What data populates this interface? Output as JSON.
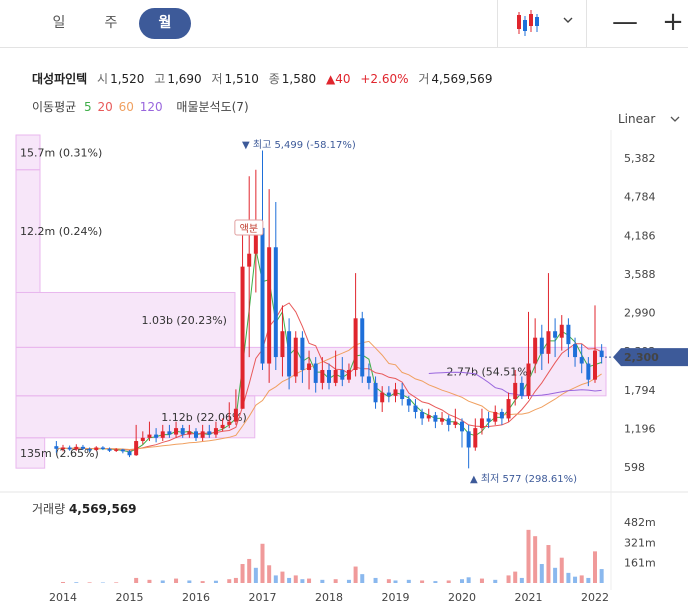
{
  "toolbar": {
    "tabs": [
      {
        "label": "일",
        "active": false
      },
      {
        "label": "주",
        "active": false
      },
      {
        "label": "월",
        "active": true
      }
    ],
    "chart_type_icon": "candlestick-icon",
    "zoom_out_label": "—",
    "zoom_in_label": "+"
  },
  "stock": {
    "name": "대성파인텍",
    "open_label": "시",
    "open": "1,520",
    "high_label": "고",
    "high": "1,690",
    "low_label": "저",
    "low": "1,510",
    "close_label": "종",
    "close": "1,580",
    "change_arrow": "▲",
    "change": "40",
    "change_pct": "+2.60%",
    "volume_label": "거",
    "volume": "4,569,569"
  },
  "indicators": {
    "ma_label": "이동평균",
    "ma_periods": [
      "5",
      "20",
      "60",
      "120"
    ],
    "vp_label": "매물분석도(7)"
  },
  "scale_button": "Linear",
  "volume_panel": {
    "label": "거래량",
    "value": "4,569,569"
  },
  "colors": {
    "up": "#e0252d",
    "down": "#1e6fd9",
    "ma5": "#3fae49",
    "ma20": "#e85a5a",
    "ma60": "#f0a060",
    "ma120": "#9966dd",
    "accent": "#3d5a99",
    "vp": "#e9b7ee"
  },
  "chart_data": {
    "type": "candlestick",
    "y_ticks": [
      "5,382",
      "4,784",
      "4,186",
      "3,588",
      "2,990",
      "2,392",
      "1,794",
      "1,196",
      "598"
    ],
    "y_tick_values": [
      5382,
      4784,
      4186,
      3588,
      2990,
      2392,
      1794,
      1196,
      598
    ],
    "ylim": [
      598,
      5382
    ],
    "x_ticks": [
      "2014",
      "2015",
      "2016",
      "2017",
      "2018",
      "2019",
      "2020",
      "2021",
      "2022"
    ],
    "current_price": {
      "value": 2300,
      "label": "2,300"
    },
    "extremes": {
      "high": {
        "label": "최고",
        "value": "5,499",
        "pct": "(-58.17%)",
        "date": "2016-12"
      },
      "low": {
        "label": "최저",
        "value": "577",
        "pct": "(298.61%)",
        "date": "2020-03"
      }
    },
    "annotation": {
      "text": "액분",
      "date": "2016-10"
    },
    "volume_profile": [
      {
        "price_low": 5200,
        "price_high": 6000,
        "volume_label": "15.7m",
        "pct": "(0.31%)",
        "pct_value": 0.31
      },
      {
        "price_low": 3300,
        "price_high": 5200,
        "volume_label": "12.2m",
        "pct": "(0.24%)",
        "pct_value": 0.24
      },
      {
        "price_low": 2450,
        "price_high": 3300,
        "volume_label": "1.03b",
        "pct": "(20.23%)",
        "pct_value": 20.23
      },
      {
        "price_low": 1700,
        "price_high": 2450,
        "volume_label": "2.77b",
        "pct": "(54.51%)",
        "pct_value": 54.51
      },
      {
        "price_low": 1050,
        "price_high": 1700,
        "volume_label": "1.12b",
        "pct": "(22.06%)",
        "pct_value": 22.06
      },
      {
        "price_low": 580,
        "price_high": 1050,
        "volume_label": "135m",
        "pct": "(2.65%)",
        "pct_value": 2.65
      }
    ],
    "volume_y_ticks": [
      "482m",
      "321m",
      "161m"
    ],
    "volume_y_values": [
      482,
      321,
      161
    ],
    "candles": [
      [
        2013.9,
        920,
        880,
        1000,
        820
      ],
      [
        2014.0,
        880,
        900,
        940,
        840
      ],
      [
        2014.1,
        900,
        870,
        930,
        850
      ],
      [
        2014.2,
        870,
        910,
        950,
        850
      ],
      [
        2014.3,
        910,
        880,
        940,
        860
      ],
      [
        2014.4,
        880,
        860,
        900,
        830
      ],
      [
        2014.5,
        860,
        900,
        920,
        850
      ],
      [
        2014.6,
        900,
        880,
        920,
        860
      ],
      [
        2014.7,
        880,
        850,
        900,
        830
      ],
      [
        2014.8,
        850,
        870,
        890,
        830
      ],
      [
        2014.9,
        870,
        840,
        880,
        810
      ],
      [
        2015.0,
        840,
        780,
        860,
        750
      ],
      [
        2015.1,
        780,
        1000,
        1250,
        770
      ],
      [
        2015.2,
        1000,
        1050,
        1150,
        950
      ],
      [
        2015.3,
        1050,
        1100,
        1300,
        1000
      ],
      [
        2015.4,
        1100,
        1050,
        1200,
        980
      ],
      [
        2015.5,
        1050,
        1150,
        1250,
        1000
      ],
      [
        2015.6,
        1150,
        1100,
        1250,
        1050
      ],
      [
        2015.7,
        1100,
        1200,
        1300,
        1050
      ],
      [
        2015.8,
        1200,
        1100,
        1250,
        1050
      ],
      [
        2015.9,
        1100,
        1150,
        1250,
        1050
      ],
      [
        2016.0,
        1150,
        1050,
        1200,
        1000
      ],
      [
        2016.1,
        1050,
        1150,
        1250,
        1000
      ],
      [
        2016.2,
        1150,
        1100,
        1250,
        1050
      ],
      [
        2016.3,
        1100,
        1200,
        1300,
        1050
      ],
      [
        2016.4,
        1200,
        1250,
        1350,
        1150
      ],
      [
        2016.5,
        1250,
        1300,
        1600,
        1200
      ],
      [
        2016.6,
        1300,
        1500,
        1800,
        1250
      ],
      [
        2016.7,
        1500,
        3700,
        4300,
        1500
      ],
      [
        2016.8,
        3700,
        3900,
        5100,
        2300
      ],
      [
        2016.9,
        3900,
        4300,
        5200,
        3300
      ],
      [
        2017.0,
        4300,
        2200,
        5499,
        2100
      ],
      [
        2017.1,
        2200,
        4000,
        4900,
        1900
      ],
      [
        2017.2,
        4000,
        2300,
        4700,
        2100
      ],
      [
        2017.3,
        2300,
        2700,
        3100,
        2000
      ],
      [
        2017.4,
        2700,
        2000,
        2900,
        1800
      ],
      [
        2017.5,
        2000,
        2600,
        2700,
        1900
      ],
      [
        2017.6,
        2600,
        2100,
        2700,
        1900
      ],
      [
        2017.7,
        2100,
        2200,
        2400,
        1800
      ],
      [
        2017.8,
        2200,
        1900,
        2300,
        1750
      ],
      [
        2017.9,
        1900,
        2100,
        2300,
        1800
      ],
      [
        2018.0,
        2100,
        1900,
        2200,
        1800
      ],
      [
        2018.1,
        1900,
        2100,
        2400,
        1850
      ],
      [
        2018.2,
        2100,
        1950,
        2300,
        1850
      ],
      [
        2018.3,
        1950,
        2100,
        2200,
        1900
      ],
      [
        2018.4,
        2100,
        2900,
        3600,
        2000
      ],
      [
        2018.5,
        2900,
        2000,
        3000,
        1900
      ],
      [
        2018.6,
        2000,
        1900,
        2200,
        1800
      ],
      [
        2018.7,
        1900,
        1600,
        2000,
        1500
      ],
      [
        2018.8,
        1600,
        1750,
        1850,
        1450
      ],
      [
        2018.9,
        1750,
        1700,
        1850,
        1600
      ],
      [
        2019.0,
        1700,
        1800,
        1900,
        1600
      ],
      [
        2019.1,
        1800,
        1650,
        1900,
        1550
      ],
      [
        2019.2,
        1650,
        1550,
        1700,
        1450
      ],
      [
        2019.3,
        1550,
        1450,
        1650,
        1350
      ],
      [
        2019.4,
        1450,
        1350,
        1500,
        1250
      ],
      [
        2019.5,
        1350,
        1400,
        1500,
        1300
      ],
      [
        2019.6,
        1400,
        1300,
        1450,
        1200
      ],
      [
        2019.7,
        1300,
        1350,
        1450,
        1250
      ],
      [
        2019.8,
        1350,
        1250,
        1400,
        1150
      ],
      [
        2019.9,
        1250,
        1300,
        1500,
        1200
      ],
      [
        2020.0,
        1300,
        1150,
        1350,
        900
      ],
      [
        2020.1,
        1150,
        900,
        1250,
        577
      ],
      [
        2020.2,
        900,
        1200,
        1350,
        850
      ],
      [
        2020.3,
        1200,
        1350,
        1500,
        1100
      ],
      [
        2020.4,
        1350,
        1300,
        1450,
        1200
      ],
      [
        2020.5,
        1300,
        1450,
        1550,
        1250
      ],
      [
        2020.6,
        1450,
        1350,
        1500,
        1250
      ],
      [
        2020.7,
        1350,
        1650,
        1750,
        1300
      ],
      [
        2020.8,
        1650,
        1900,
        2100,
        1550
      ],
      [
        2020.9,
        1900,
        1700,
        2000,
        1650
      ],
      [
        2021.0,
        1700,
        2200,
        3000,
        1650
      ],
      [
        2021.1,
        2200,
        2600,
        2900,
        2050
      ],
      [
        2021.2,
        2600,
        2350,
        2800,
        2100
      ],
      [
        2021.3,
        2350,
        2700,
        3600,
        2200
      ],
      [
        2021.4,
        2700,
        2600,
        2900,
        2300
      ],
      [
        2021.5,
        2600,
        2800,
        2950,
        2400
      ],
      [
        2021.6,
        2800,
        2500,
        2900,
        2300
      ],
      [
        2021.7,
        2500,
        2300,
        2600,
        2150
      ],
      [
        2021.8,
        2300,
        2200,
        2500,
        2050
      ],
      [
        2021.9,
        2200,
        1950,
        2300,
        1850
      ],
      [
        2022.0,
        1950,
        2400,
        3100,
        1900
      ],
      [
        2022.1,
        2400,
        2300,
        2500,
        2200
      ]
    ],
    "volumes": [
      [
        2014.0,
        8,
        1
      ],
      [
        2014.2,
        6,
        0
      ],
      [
        2014.4,
        5,
        1
      ],
      [
        2014.6,
        4,
        0
      ],
      [
        2014.8,
        5,
        1
      ],
      [
        2015.1,
        40,
        1
      ],
      [
        2015.3,
        25,
        1
      ],
      [
        2015.5,
        20,
        0
      ],
      [
        2015.7,
        35,
        1
      ],
      [
        2015.9,
        20,
        0
      ],
      [
        2016.1,
        15,
        1
      ],
      [
        2016.3,
        18,
        0
      ],
      [
        2016.5,
        30,
        1
      ],
      [
        2016.6,
        40,
        1
      ],
      [
        2016.7,
        150,
        1
      ],
      [
        2016.8,
        190,
        1
      ],
      [
        2016.9,
        120,
        0
      ],
      [
        2017.0,
        310,
        1
      ],
      [
        2017.1,
        140,
        1
      ],
      [
        2017.2,
        60,
        0
      ],
      [
        2017.3,
        90,
        1
      ],
      [
        2017.4,
        40,
        0
      ],
      [
        2017.5,
        60,
        1
      ],
      [
        2017.6,
        30,
        0
      ],
      [
        2017.7,
        35,
        1
      ],
      [
        2017.9,
        25,
        0
      ],
      [
        2018.1,
        30,
        1
      ],
      [
        2018.3,
        25,
        0
      ],
      [
        2018.4,
        130,
        1
      ],
      [
        2018.5,
        70,
        0
      ],
      [
        2018.7,
        40,
        0
      ],
      [
        2018.9,
        30,
        1
      ],
      [
        2019.0,
        20,
        0
      ],
      [
        2019.2,
        25,
        0
      ],
      [
        2019.4,
        20,
        1
      ],
      [
        2019.6,
        15,
        0
      ],
      [
        2019.8,
        20,
        1
      ],
      [
        2020.0,
        30,
        0
      ],
      [
        2020.1,
        45,
        0
      ],
      [
        2020.3,
        35,
        1
      ],
      [
        2020.5,
        25,
        0
      ],
      [
        2020.7,
        60,
        1
      ],
      [
        2020.8,
        90,
        1
      ],
      [
        2020.9,
        40,
        0
      ],
      [
        2021.0,
        420,
        1
      ],
      [
        2021.1,
        370,
        1
      ],
      [
        2021.2,
        150,
        0
      ],
      [
        2021.3,
        300,
        1
      ],
      [
        2021.4,
        120,
        0
      ],
      [
        2021.5,
        200,
        1
      ],
      [
        2021.6,
        80,
        0
      ],
      [
        2021.7,
        50,
        0
      ],
      [
        2021.8,
        60,
        1
      ],
      [
        2021.9,
        40,
        0
      ],
      [
        2022.0,
        250,
        1
      ],
      [
        2022.1,
        110,
        0
      ]
    ]
  }
}
